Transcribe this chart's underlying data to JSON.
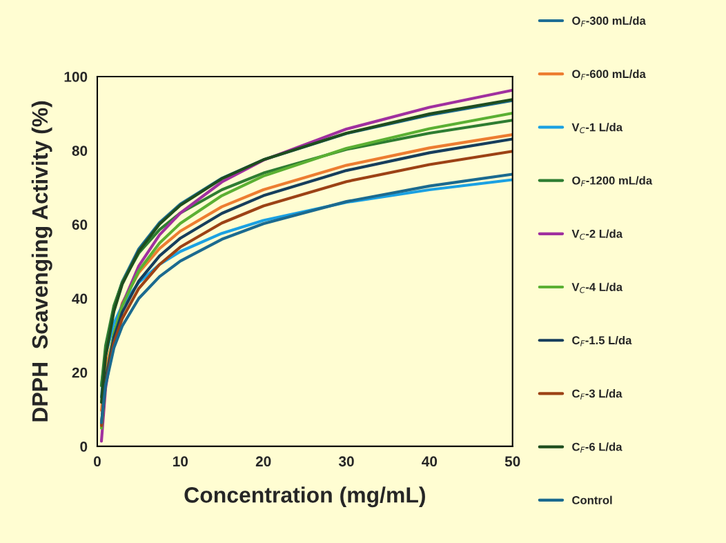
{
  "chart_data": {
    "type": "line",
    "xlabel": "Concentration (mg/mL)",
    "ylabel": "DPPH  Scavenging Activity (%)",
    "x": [
      0.5,
      1,
      2,
      3,
      5,
      7.5,
      10,
      15,
      20,
      30,
      40,
      50
    ],
    "series": [
      {
        "name": "O$_{F}$-300 mL/da",
        "color": "#1f6e94",
        "values": [
          13.3,
          25.4,
          37.5,
          44.5,
          53.4,
          60.5,
          65.5,
          72.5,
          77.5,
          84.6,
          89.6,
          93.5
        ]
      },
      {
        "name": "O$_{F}$-600 mL/da",
        "color": "#ed7d31",
        "x": [
          0.5,
          1,
          3,
          5,
          7.5,
          10,
          15,
          20,
          30,
          40,
          50
        ],
        "values": [
          9.7,
          20.9,
          38.7,
          47.0,
          53.5,
          58.2,
          64.8,
          69.4,
          76.0,
          80.7,
          84.3
        ]
      },
      {
        "name": "V$_{C}$-1 L/da",
        "color": "#1ba1e2",
        "values": [
          16.4,
          24.8,
          33.2,
          38.1,
          44.3,
          49.2,
          52.7,
          57.6,
          61.1,
          66.0,
          69.4,
          72.1
        ]
      },
      {
        "name": "O$_{F}$-1200 mL/da",
        "color": "#2e7d32",
        "values": [
          16.4,
          27.2,
          38.0,
          44.3,
          52.3,
          58.6,
          63.1,
          69.4,
          73.9,
          80.3,
          84.7,
          88.2
        ]
      },
      {
        "name": "V$_{C}$-2 L/da",
        "color": "#a0309f",
        "values": [
          1.4,
          15.7,
          30.0,
          38.3,
          48.8,
          57.2,
          63.1,
          71.5,
          77.4,
          85.8,
          91.7,
          96.3
        ]
      },
      {
        "name": "V$_{C}$-4 L/da",
        "color": "#5bb033",
        "values": [
          4.9,
          17.7,
          30.5,
          38.0,
          47.5,
          55.0,
          60.3,
          67.8,
          73.1,
          80.6,
          85.9,
          90.1
        ]
      },
      {
        "name": "C$_{F}$-1.5 L/da",
        "color": "#163e5c",
        "values": [
          6.2,
          17.8,
          29.4,
          36.2,
          44.7,
          51.5,
          56.3,
          63.0,
          67.8,
          74.6,
          79.4,
          83.1
        ]
      },
      {
        "name": "C$_{F}$-3 L/da",
        "color": "#9c4215",
        "values": [
          5.6,
          16.8,
          28.0,
          34.5,
          42.7,
          49.2,
          53.9,
          60.4,
          65.0,
          71.6,
          76.2,
          79.8
        ]
      },
      {
        "name": "C$_{F}$-6 L/da",
        "color": "#1e4d1e",
        "values": [
          11.9,
          24.2,
          36.5,
          43.8,
          52.8,
          60.1,
          65.2,
          72.4,
          77.5,
          84.7,
          89.9,
          93.8
        ]
      },
      {
        "name": "Control",
        "color": "#1b6a8f",
        "values": [
          6.4,
          16.5,
          26.6,
          32.5,
          40.0,
          45.9,
          50.1,
          56.0,
          60.2,
          66.2,
          70.4,
          73.6
        ]
      }
    ],
    "xlim": [
      0,
      50
    ],
    "xticks": [
      0,
      10,
      20,
      30,
      40,
      50
    ],
    "ylim": [
      0,
      100
    ],
    "yticks": [
      0,
      20,
      40,
      60,
      80,
      100
    ],
    "grid": false,
    "legend": "right",
    "marker": "none",
    "line_style": "solid"
  }
}
